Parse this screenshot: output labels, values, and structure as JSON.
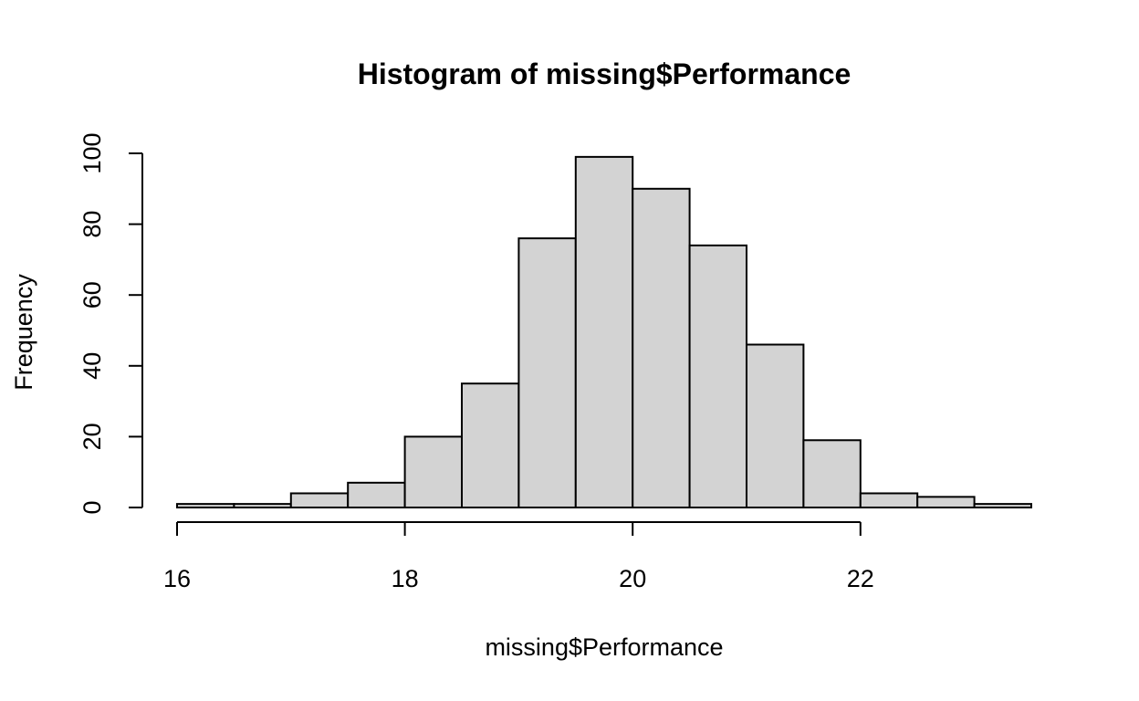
{
  "chart_data": {
    "type": "bar",
    "title": "Histogram of missing$Performance",
    "xlabel": "missing$Performance",
    "ylabel": "Frequency",
    "bin_edges": [
      16,
      16.5,
      17,
      17.5,
      18,
      18.5,
      19,
      19.5,
      20,
      20.5,
      21,
      21.5,
      22,
      22.5,
      23,
      23.5
    ],
    "values": [
      1,
      1,
      4,
      7,
      20,
      35,
      76,
      99,
      90,
      74,
      46,
      19,
      4,
      3,
      1
    ],
    "xlim": [
      16,
      23.5
    ],
    "ylim": [
      0,
      100
    ],
    "x_ticks": [
      16,
      18,
      20,
      22
    ],
    "x_tick_labels": [
      "16",
      "18",
      "20",
      "22"
    ],
    "y_ticks": [
      0,
      20,
      40,
      60,
      80,
      100
    ],
    "y_tick_labels": [
      "0",
      "20",
      "40",
      "60",
      "80",
      "100"
    ],
    "grid": false,
    "bar_color": "#d3d3d3",
    "edge_color": "#000000"
  }
}
